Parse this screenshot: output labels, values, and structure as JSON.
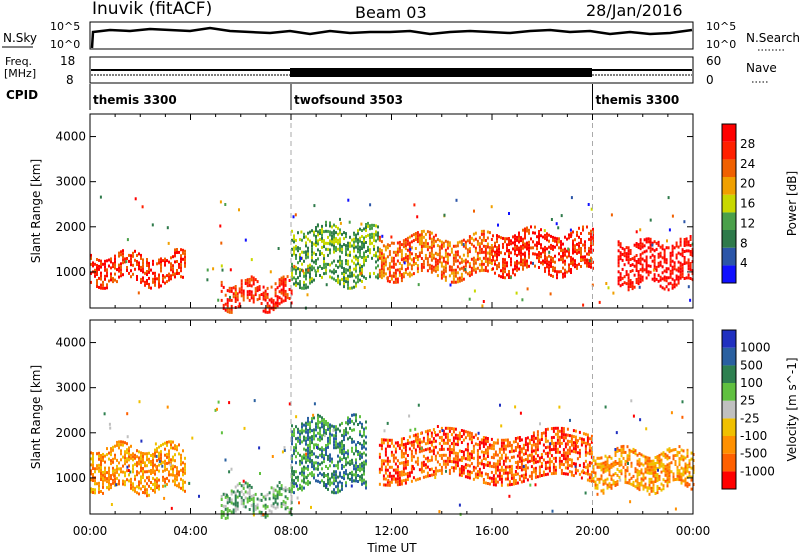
{
  "header": {
    "station": "Inuvik (fitACF)",
    "beam": "Beam 03",
    "date": "28/Jan/2016"
  },
  "status_panels": {
    "nsky_label": "N.Sky",
    "nsky_ticks": [
      "10^5",
      "10^0"
    ],
    "nsearch_label": "N.Search",
    "freq_label_1": "Freq.",
    "freq_label_2": "[MHz]",
    "freq_ticks": [
      "18",
      "8"
    ],
    "nave_label": "Nave",
    "nave_ticks": [
      "60",
      "0"
    ],
    "cpid_label": "CPID",
    "cpid_segments": [
      {
        "label": "themis 3300",
        "start_h": 0,
        "end_h": 8
      },
      {
        "label": "twofsound 3503",
        "start_h": 8,
        "end_h": 20
      },
      {
        "label": "themis 3300",
        "start_h": 20,
        "end_h": 24
      }
    ]
  },
  "colors": {
    "power": [
      "#1010ff",
      "#2b55a8",
      "#2e7a4a",
      "#4aa04a",
      "#c8d800",
      "#f0a000",
      "#f06000",
      "#ff2000",
      "#ff0000"
    ],
    "velocity": [
      "#ff0000",
      "#ff6000",
      "#ff9000",
      "#f0c000",
      "#c0c0c0",
      "#60c040",
      "#2e8050",
      "#2a60a0",
      "#2030c0"
    ]
  },
  "chart_data": [
    {
      "type": "heatmap",
      "ylabel": "Slant Range [km]",
      "xlabel": "Time UT",
      "x_ticks": [
        "00:00",
        "04:00",
        "08:00",
        "12:00",
        "16:00",
        "20:00",
        "00:00"
      ],
      "xlim_hours": [
        0,
        24
      ],
      "y_ticks": [
        1000,
        2000,
        3000,
        4000
      ],
      "ylim": [
        200,
        4500
      ],
      "colorbar_label": "Power [dB]",
      "colorbar_ticks": [
        "4",
        "8",
        "12",
        "16",
        "20",
        "24",
        "28"
      ],
      "mode_boundaries_h": [
        8,
        20
      ],
      "echo_bands": [
        {
          "h0": 0.0,
          "h1": 3.8,
          "r0": 750,
          "r1": 1400,
          "level": 7
        },
        {
          "h0": 5.2,
          "h1": 8.0,
          "r0": 250,
          "r1": 800,
          "level": 7
        },
        {
          "h0": 8.0,
          "h1": 11.5,
          "r0": 800,
          "r1": 2000,
          "level": 3
        },
        {
          "h0": 11.5,
          "h1": 16.0,
          "r0": 900,
          "r1": 1800,
          "level": 6
        },
        {
          "h0": 16.0,
          "h1": 20.0,
          "r0": 1000,
          "r1": 1900,
          "level": 7
        },
        {
          "h0": 21.0,
          "h1": 24.0,
          "r0": 750,
          "r1": 1700,
          "level": 8
        }
      ]
    },
    {
      "type": "heatmap",
      "ylabel": "Slant Range [km]",
      "xlabel": "Time UT",
      "x_ticks": [
        "00:00",
        "04:00",
        "08:00",
        "12:00",
        "16:00",
        "20:00",
        "00:00"
      ],
      "xlim_hours": [
        0,
        24
      ],
      "y_ticks": [
        1000,
        2000,
        3000,
        4000
      ],
      "ylim": [
        200,
        4500
      ],
      "colorbar_label": "Velocity [m s^-1]",
      "colorbar_ticks": [
        "-1000",
        "-500",
        "-100",
        "-25",
        "25",
        "100",
        "500",
        "1000"
      ],
      "mode_boundaries_h": [
        8,
        20
      ],
      "echo_bands": [
        {
          "h0": 0.0,
          "h1": 3.8,
          "r0": 750,
          "r1": 1700,
          "level": 2
        },
        {
          "h0": 5.2,
          "h1": 8.0,
          "r0": 250,
          "r1": 800,
          "level": 5
        },
        {
          "h0": 8.0,
          "h1": 11.0,
          "r0": 800,
          "r1": 2300,
          "level": 6
        },
        {
          "h0": 11.5,
          "h1": 20.0,
          "r0": 1000,
          "r1": 2000,
          "level": 1
        },
        {
          "h0": 20.0,
          "h1": 24.0,
          "r0": 750,
          "r1": 1600,
          "level": 2
        }
      ]
    }
  ],
  "footer": {
    "time_label": "Time UT"
  }
}
